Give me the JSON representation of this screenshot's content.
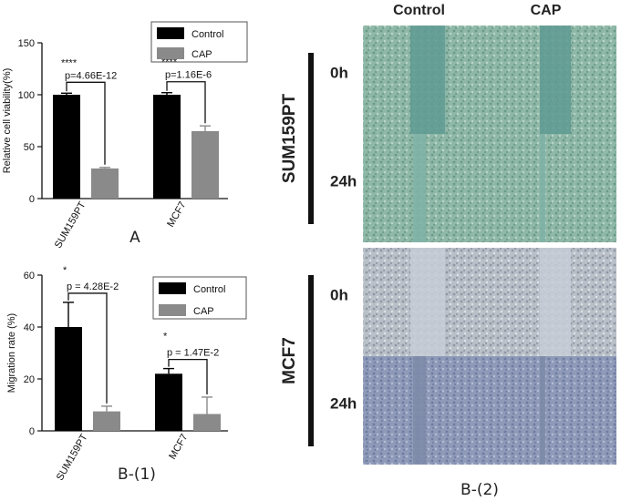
{
  "chart_data": [
    {
      "type": "bar",
      "ylabel": "Relative cell viability(%)",
      "ylim": [
        0,
        150
      ],
      "yticks": [
        0,
        50,
        100,
        150
      ],
      "categories": [
        "SUM159PT",
        "MCF7"
      ],
      "series": [
        {
          "name": "Control",
          "color": "#000000",
          "values": [
            100,
            100
          ],
          "errors": [
            1.5,
            2
          ]
        },
        {
          "name": "CAP",
          "color": "#8a8a8a",
          "values": [
            29,
            65
          ],
          "errors": [
            1,
            5
          ]
        }
      ],
      "annotations": [
        {
          "category": "SUM159PT",
          "stars": "****",
          "p": "p=4.66E-12"
        },
        {
          "category": "MCF7",
          "stars": "****",
          "p": "p=1.16E-6"
        }
      ],
      "legend": "top-right",
      "panel_label": "A"
    },
    {
      "type": "bar",
      "ylabel": "Migration rate (%)",
      "ylim": [
        0,
        60
      ],
      "yticks": [
        0,
        20,
        40,
        60
      ],
      "categories": [
        "SUM159PT",
        "MCF7"
      ],
      "series": [
        {
          "name": "Control",
          "color": "#000000",
          "values": [
            40,
            22
          ],
          "errors": [
            9.5,
            2
          ]
        },
        {
          "name": "CAP",
          "color": "#8a8a8a",
          "values": [
            7.5,
            6.5
          ],
          "errors": [
            2,
            6.5
          ]
        }
      ],
      "annotations": [
        {
          "category": "SUM159PT",
          "stars": "*",
          "p": "p = 4.28E-2"
        },
        {
          "category": "MCF7",
          "stars": "*",
          "p": "p = 1.47E-2"
        }
      ],
      "legend": "top-right",
      "panel_label": "B-(1)"
    }
  ],
  "micrographs": {
    "columns": [
      "Control",
      "CAP"
    ],
    "groups": [
      {
        "name": "SUM159PT",
        "rows": [
          "0h",
          "24h"
        ],
        "tint_dark": "#6f9c8c",
        "tint_light": "#a9c9bd",
        "gap": "#5f9a93"
      },
      {
        "name": "MCF7",
        "rows": [
          "0h",
          "24h"
        ],
        "tint_dark": "#8d97a6",
        "tint_light": "#c9d0d6",
        "gap": "#7d8aa7"
      }
    ],
    "panel_label": "B-(2)"
  }
}
